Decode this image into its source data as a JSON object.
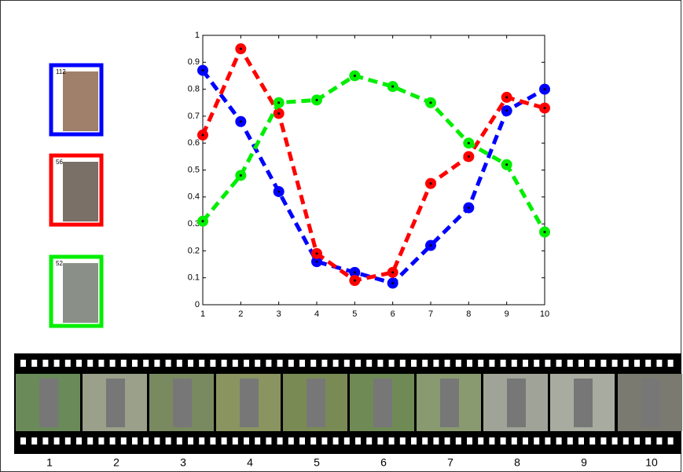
{
  "chart_data": {
    "type": "line",
    "x": [
      1,
      2,
      3,
      4,
      5,
      6,
      7,
      8,
      9,
      10
    ],
    "series": [
      {
        "color": "#0000ff",
        "values": [
          0.87,
          0.68,
          0.42,
          0.16,
          0.12,
          0.08,
          0.22,
          0.36,
          0.72,
          0.8
        ]
      },
      {
        "color": "#ff0000",
        "values": [
          0.63,
          0.95,
          0.71,
          0.19,
          0.09,
          0.12,
          0.45,
          0.55,
          0.77,
          0.73
        ]
      },
      {
        "color": "#00ee00",
        "values": [
          0.31,
          0.48,
          0.75,
          0.76,
          0.85,
          0.81,
          0.75,
          0.6,
          0.52,
          0.27
        ]
      }
    ],
    "xlim": [
      1,
      10
    ],
    "xticks": [
      1,
      2,
      3,
      4,
      5,
      6,
      7,
      8,
      9,
      10
    ],
    "ylim": [
      0,
      1
    ],
    "yticks": [
      0,
      0.1,
      0.2,
      0.3,
      0.4,
      0.5,
      0.6,
      0.7,
      0.8,
      0.9,
      1
    ]
  },
  "thumbnails": [
    {
      "label": "112",
      "color": "#0000ff"
    },
    {
      "label": "56",
      "color": "#ff0000"
    },
    {
      "label": "52",
      "color": "#00ee00"
    }
  ],
  "filmstrip": {
    "frames": [
      1,
      2,
      3,
      4,
      5,
      6,
      7,
      8,
      9,
      10
    ]
  }
}
